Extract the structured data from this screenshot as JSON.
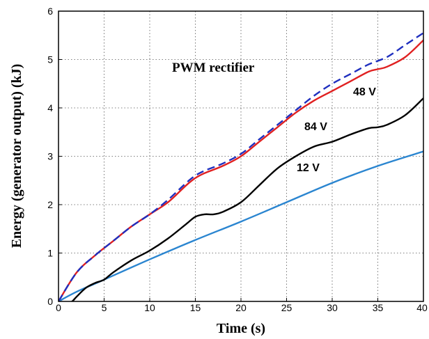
{
  "chart_data": {
    "type": "line",
    "xlabel": "Time (s)",
    "ylabel": "Energy (generator output) (kJ)",
    "xlim": [
      0,
      40
    ],
    "ylim": [
      0,
      6
    ],
    "xticks": [
      "0",
      "5",
      "10",
      "15",
      "20",
      "25",
      "30",
      "35",
      "40"
    ],
    "yticks": [
      "0",
      "1",
      "2",
      "3",
      "4",
      "5",
      "6"
    ],
    "grid": true,
    "series": [
      {
        "name": "PWM rectifier",
        "color": "#1f2fbf",
        "dash": true,
        "x": [
          0,
          2,
          4,
          6,
          8,
          10,
          12,
          14,
          15,
          16,
          18,
          20,
          22,
          24,
          26,
          28,
          30,
          32,
          34,
          36,
          38,
          40
        ],
        "y": [
          0,
          0.6,
          0.95,
          1.25,
          1.55,
          1.8,
          2.1,
          2.45,
          2.6,
          2.7,
          2.85,
          3.05,
          3.35,
          3.65,
          3.95,
          4.25,
          4.5,
          4.7,
          4.9,
          5.05,
          5.3,
          5.55
        ]
      },
      {
        "name": "48 V",
        "color": "#e02020",
        "dash": false,
        "x": [
          0,
          2,
          4,
          6,
          8,
          10,
          12,
          14,
          15,
          16,
          18,
          20,
          22,
          24,
          26,
          28,
          30,
          32,
          34,
          35,
          36,
          38,
          40
        ],
        "y": [
          0,
          0.6,
          0.95,
          1.25,
          1.55,
          1.8,
          2.05,
          2.4,
          2.55,
          2.65,
          2.8,
          3.0,
          3.3,
          3.6,
          3.9,
          4.15,
          4.35,
          4.55,
          4.75,
          4.8,
          4.85,
          5.05,
          5.4
        ]
      },
      {
        "name": "84 V",
        "color": "#000000",
        "dash": false,
        "x": [
          0,
          1,
          1.5,
          2,
          3,
          4,
          5,
          6,
          8,
          10,
          12,
          14,
          15,
          16,
          17,
          18,
          20,
          22,
          24,
          26,
          28,
          30,
          32,
          34,
          35,
          36,
          38,
          40
        ],
        "y": [
          -0.2,
          -0.05,
          0,
          0.1,
          0.28,
          0.38,
          0.45,
          0.6,
          0.85,
          1.05,
          1.3,
          1.6,
          1.75,
          1.8,
          1.8,
          1.85,
          2.05,
          2.4,
          2.75,
          3.0,
          3.2,
          3.3,
          3.45,
          3.58,
          3.6,
          3.65,
          3.85,
          4.2
        ]
      },
      {
        "name": "12 V",
        "color": "#2a85d0",
        "dash": false,
        "x": [
          0,
          2,
          5,
          10,
          15,
          20,
          25,
          30,
          35,
          40
        ],
        "y": [
          0,
          0.2,
          0.45,
          0.87,
          1.27,
          1.65,
          2.05,
          2.45,
          2.8,
          3.1
        ]
      }
    ]
  }
}
